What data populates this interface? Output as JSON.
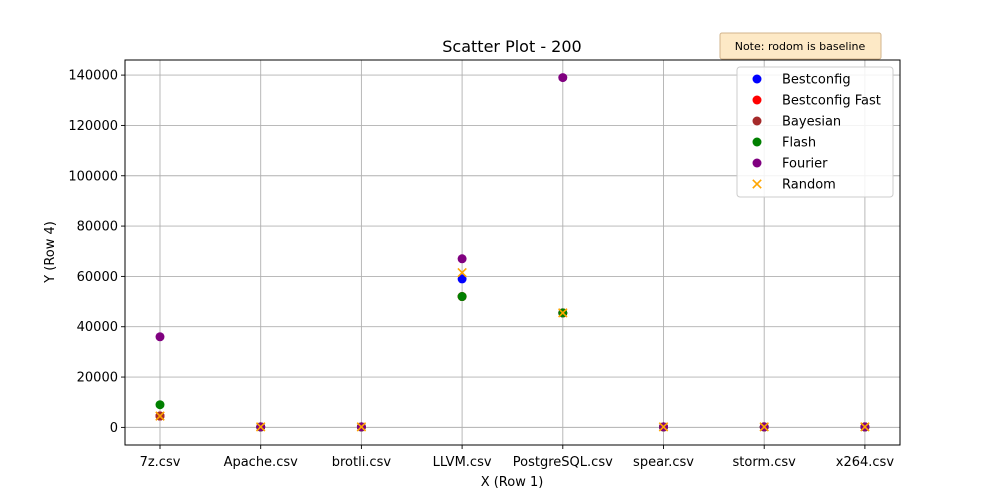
{
  "chart_data": {
    "type": "scatter",
    "title": "Scatter Plot - 200",
    "xlabel": "X (Row 1)",
    "ylabel": "Y (Row 4)",
    "categories": [
      "7z.csv",
      "Apache.csv",
      "brotli.csv",
      "LLVM.csv",
      "PostgreSQL.csv",
      "spear.csv",
      "storm.csv",
      "x264.csv"
    ],
    "ylim": [
      -7000,
      146000
    ],
    "yticks": [
      0,
      20000,
      40000,
      60000,
      80000,
      100000,
      120000,
      140000
    ],
    "ytick_labels": [
      "0",
      "20000",
      "40000",
      "60000",
      "80000",
      "100000",
      "120000",
      "140000"
    ],
    "grid": true,
    "legend_position": "top-right",
    "annotation": "Note: rodom is baseline",
    "series": [
      {
        "name": "Bestconfig",
        "color": "#0000ff",
        "marker": "circle",
        "values": [
          4500,
          200,
          200,
          59000,
          45500,
          200,
          200,
          200
        ]
      },
      {
        "name": "Bestconfig Fast",
        "color": "#ff0000",
        "marker": "circle",
        "values": [
          4500,
          200,
          200,
          52000,
          45500,
          200,
          200,
          200
        ]
      },
      {
        "name": "Bayesian",
        "color": "#a52a2a",
        "marker": "circle",
        "values": [
          4500,
          200,
          200,
          52000,
          45500,
          200,
          200,
          200
        ]
      },
      {
        "name": "Flash",
        "color": "#008000",
        "marker": "circle",
        "values": [
          9000,
          200,
          200,
          52000,
          45500,
          200,
          200,
          200
        ]
      },
      {
        "name": "Fourier",
        "color": "#800080",
        "marker": "circle",
        "values": [
          36000,
          200,
          200,
          67000,
          139000,
          200,
          200,
          200
        ]
      },
      {
        "name": "Random",
        "color": "#ffa500",
        "marker": "x",
        "values": [
          4500,
          200,
          200,
          61500,
          45500,
          200,
          200,
          200
        ]
      }
    ]
  }
}
